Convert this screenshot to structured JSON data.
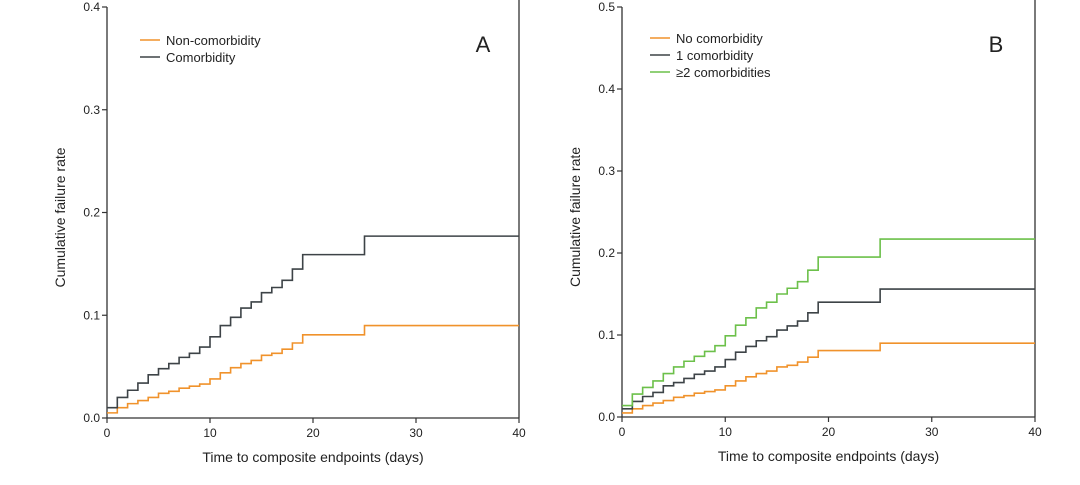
{
  "chart_data": [
    {
      "type": "line",
      "step": true,
      "panel_label": "A",
      "xlabel": "Time to composite endpoints (days)",
      "ylabel": "Cumulative failure rate",
      "xlim": [
        0,
        40
      ],
      "ylim": [
        0,
        0.4
      ],
      "xticks": [
        "0",
        "10",
        "20",
        "30",
        "40"
      ],
      "yticks": [
        "0.0",
        "0.1",
        "0.2",
        "0.3",
        "0.4"
      ],
      "legend_position": "top-left",
      "x": [
        0,
        1,
        2,
        3,
        4,
        5,
        6,
        7,
        8,
        9,
        10,
        11,
        12,
        13,
        14,
        15,
        16,
        17,
        18,
        19,
        25,
        40
      ],
      "series": [
        {
          "name": "Non-comorbidity",
          "color": "#f0922b",
          "values": [
            0.005,
            0.01,
            0.014,
            0.017,
            0.02,
            0.024,
            0.026,
            0.029,
            0.031,
            0.033,
            0.038,
            0.044,
            0.049,
            0.053,
            0.056,
            0.061,
            0.063,
            0.067,
            0.073,
            0.081,
            0.09,
            0.09
          ]
        },
        {
          "name": "Comorbidity",
          "color": "#3d4347",
          "values": [
            0.01,
            0.02,
            0.027,
            0.034,
            0.042,
            0.048,
            0.053,
            0.059,
            0.063,
            0.069,
            0.079,
            0.09,
            0.098,
            0.107,
            0.113,
            0.122,
            0.127,
            0.134,
            0.145,
            0.159,
            0.177,
            0.177
          ]
        }
      ]
    },
    {
      "type": "line",
      "step": true,
      "panel_label": "B",
      "xlabel": "Time to composite endpoints (days)",
      "ylabel": "Cumulative failure rate",
      "xlim": [
        0,
        40
      ],
      "ylim": [
        0,
        0.5
      ],
      "xticks": [
        "0",
        "10",
        "20",
        "30",
        "40"
      ],
      "yticks": [
        "0.0",
        "0.1",
        "0.2",
        "0.3",
        "0.4",
        "0.5"
      ],
      "legend_position": "top-left",
      "x": [
        0,
        1,
        2,
        3,
        4,
        5,
        6,
        7,
        8,
        9,
        10,
        11,
        12,
        13,
        14,
        15,
        16,
        17,
        18,
        19,
        25,
        40
      ],
      "series": [
        {
          "name": "No comorbidity",
          "color": "#f0922b",
          "values": [
            0.005,
            0.01,
            0.014,
            0.017,
            0.02,
            0.024,
            0.026,
            0.029,
            0.031,
            0.033,
            0.038,
            0.044,
            0.049,
            0.053,
            0.056,
            0.061,
            0.063,
            0.067,
            0.073,
            0.081,
            0.09,
            0.09
          ]
        },
        {
          "name": "1 comorbidity",
          "color": "#3d4347",
          "values": [
            0.01,
            0.019,
            0.025,
            0.03,
            0.038,
            0.042,
            0.047,
            0.052,
            0.056,
            0.061,
            0.07,
            0.079,
            0.086,
            0.093,
            0.098,
            0.106,
            0.111,
            0.117,
            0.127,
            0.14,
            0.156,
            0.156
          ]
        },
        {
          "name": "≥2 comorbidities",
          "color": "#6cc04a",
          "values": [
            0.014,
            0.028,
            0.036,
            0.044,
            0.053,
            0.061,
            0.068,
            0.074,
            0.08,
            0.087,
            0.099,
            0.112,
            0.121,
            0.133,
            0.14,
            0.15,
            0.157,
            0.165,
            0.179,
            0.195,
            0.217,
            0.217
          ]
        }
      ]
    }
  ]
}
